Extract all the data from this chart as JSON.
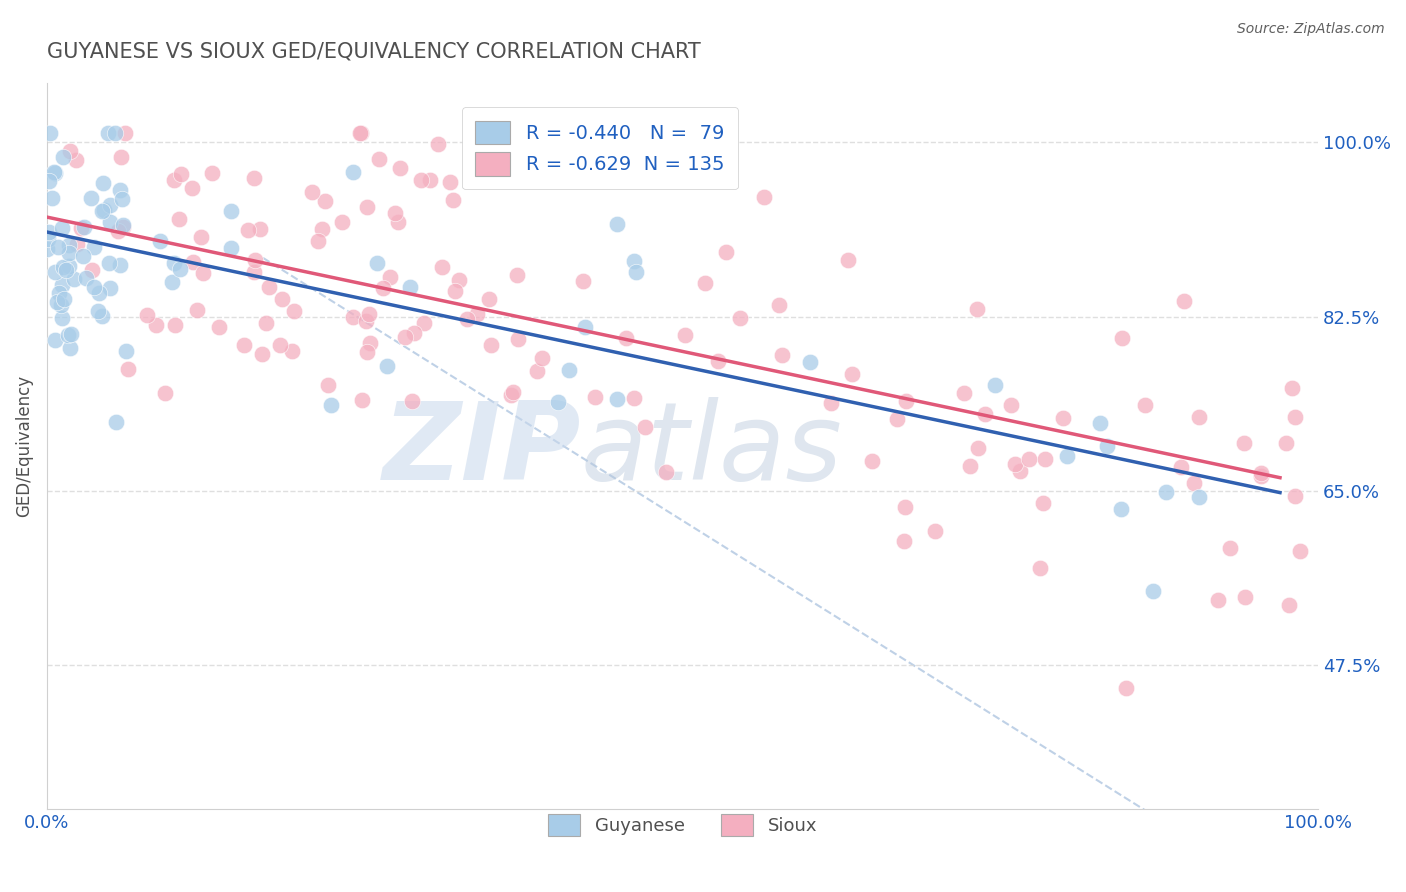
{
  "title": "GUYANESE VS SIOUX GED/EQUIVALENCY CORRELATION CHART",
  "source": "Source: ZipAtlas.com",
  "ylabel": "GED/Equivalency",
  "xlim": [
    0.0,
    1.0
  ],
  "ylim": [
    0.33,
    1.06
  ],
  "yticks": [
    0.475,
    0.65,
    0.825,
    1.0
  ],
  "ytick_labels": [
    "47.5%",
    "65.0%",
    "82.5%",
    "100.0%"
  ],
  "xtick_labels": [
    "0.0%",
    "100.0%"
  ],
  "xticks": [
    0.0,
    1.0
  ],
  "blue_color": "#a8cce8",
  "pink_color": "#f4afc0",
  "blue_line_color": "#3060b0",
  "pink_line_color": "#e05878",
  "dashed_line_color": "#b8cce4",
  "legend_text_color": "#2060c0",
  "r_blue": -0.44,
  "n_blue": 79,
  "r_pink": -0.629,
  "n_pink": 135,
  "watermark_zip": "ZIP",
  "watermark_atlas": "atlas",
  "legend_label_blue": "Guyanese",
  "legend_label_pink": "Sioux",
  "title_color": "#505050",
  "background_color": "#ffffff",
  "grid_color": "#d8d8d8",
  "blue_intercept": 0.91,
  "blue_slope": -0.27,
  "pink_intercept": 0.925,
  "pink_slope": -0.27,
  "dash_intercept": 1.02,
  "dash_slope": -0.8
}
